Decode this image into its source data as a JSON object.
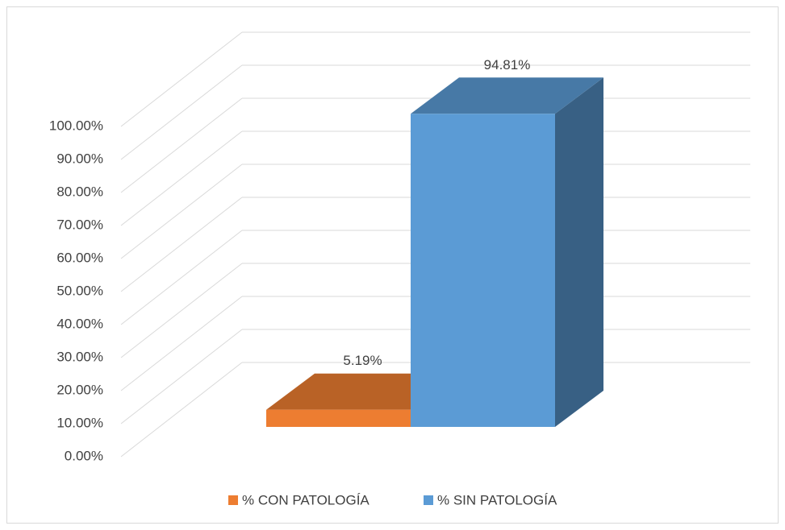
{
  "chart_data": {
    "type": "bar3d",
    "series": [
      {
        "name": "% CON PATOLOGÍA",
        "color": "#ed7d31",
        "values": [
          5.19
        ],
        "value_labels": [
          "5.19%"
        ]
      },
      {
        "name": "% SIN PATOLOGÍA",
        "color": "#5b9bd5",
        "values": [
          94.81
        ],
        "value_labels": [
          "94.81%"
        ]
      }
    ],
    "ylim": [
      0,
      100
    ],
    "yticks": [
      {
        "value": 0,
        "label": "0.00%"
      },
      {
        "value": 10,
        "label": "10.00%"
      },
      {
        "value": 20,
        "label": "20.00%"
      },
      {
        "value": 30,
        "label": "30.00%"
      },
      {
        "value": 40,
        "label": "40.00%"
      },
      {
        "value": 50,
        "label": "50.00%"
      },
      {
        "value": 60,
        "label": "60.00%"
      },
      {
        "value": 70,
        "label": "70.00%"
      },
      {
        "value": 80,
        "label": "80.00%"
      },
      {
        "value": 90,
        "label": "90.00%"
      },
      {
        "value": 100,
        "label": "100.00%"
      }
    ],
    "grid": true,
    "legend": "bottom"
  }
}
